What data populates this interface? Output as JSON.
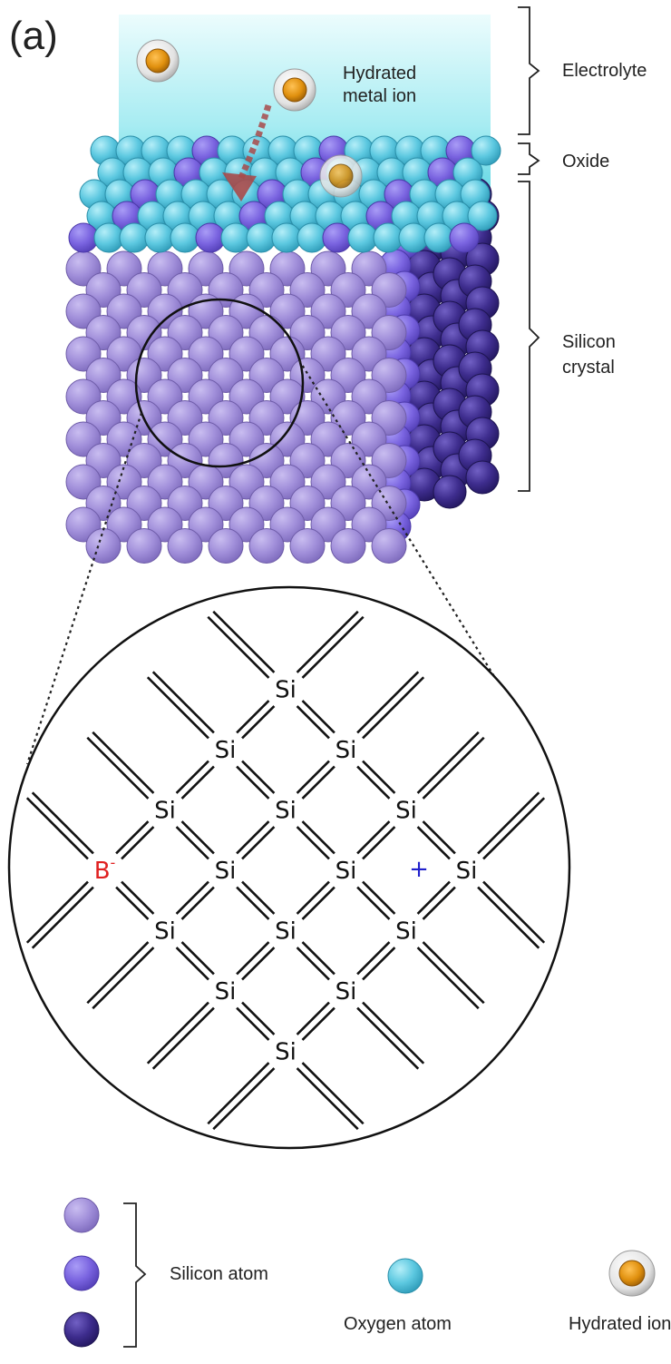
{
  "panel_label": "(a)",
  "regions": {
    "electrolyte": "Electrolyte",
    "oxide": "Oxide",
    "silicon_line1": "Silicon",
    "silicon_line2": "crystal"
  },
  "ion_label_line1": "Hydrated",
  "ion_label_line2": "metal ion",
  "lattice": {
    "atom_symbol": "Si",
    "dopant_symbol": "B",
    "dopant_charge": "-",
    "hole_symbol": "+"
  },
  "legend": {
    "silicon": "Silicon atom",
    "oxygen": "Oxygen atom",
    "ion": "Hydrated ion"
  },
  "colors": {
    "electrolyte_top": "#e8fbfd",
    "electrolyte_bottom": "#5fd6e4",
    "silicon_light": "#9b86d6",
    "silicon_mid": "#7a64e0",
    "silicon_dark": "#3e2d8e",
    "oxygen": "#5cc8e0",
    "ion_core": "#e0900e",
    "dopant": "#e02020",
    "hole": "#2020cc"
  }
}
